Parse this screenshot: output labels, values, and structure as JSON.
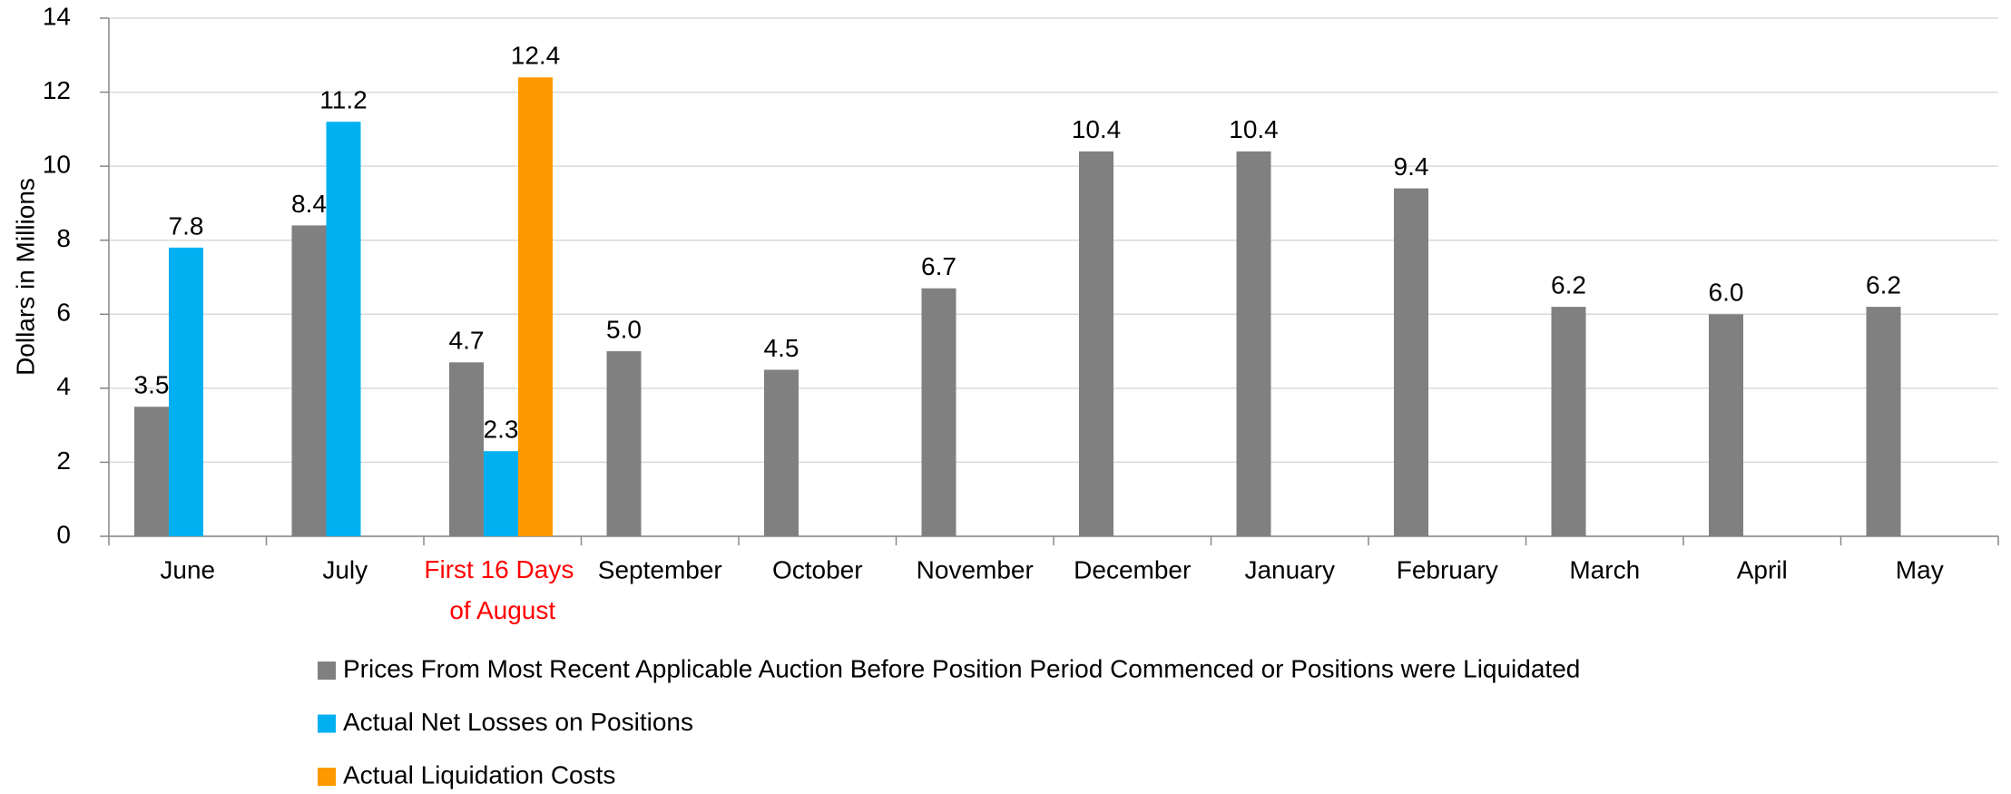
{
  "chart_data": {
    "type": "bar",
    "y_label": "Dollars in Millions",
    "categories": [
      "June",
      "July",
      "First 16 Days of August",
      "September",
      "October",
      "November",
      "December",
      "January",
      "February",
      "March",
      "April",
      "May"
    ],
    "category_label_colors": [
      "#000000",
      "#000000",
      "#ff0000",
      "#000000",
      "#000000",
      "#000000",
      "#000000",
      "#000000",
      "#000000",
      "#000000",
      "#000000",
      "#000000"
    ],
    "series": [
      {
        "name": "Prices From Most Recent Applicable Auction Before Position Period Commenced or Positions were Liquidated",
        "color": "#808080",
        "label_color": "#ff0000",
        "values": [
          3.5,
          8.4,
          4.7,
          5.0,
          4.5,
          6.7,
          10.4,
          10.4,
          9.4,
          6.2,
          6.0,
          6.2
        ],
        "value_labels": [
          "3.5",
          "8.4",
          "4.7",
          "5.0",
          "4.5",
          "6.7",
          "10.4",
          "10.4",
          "9.4",
          "6.2",
          "6.0",
          "6.2"
        ]
      },
      {
        "name": "Actual Net Losses on Positions",
        "color": "#00b0f0",
        "label_color": "#000000",
        "values": [
          7.8,
          11.2,
          2.3,
          null,
          null,
          null,
          null,
          null,
          null,
          null,
          null,
          null
        ],
        "value_labels": [
          "7.8",
          "11.2",
          "2.3",
          null,
          null,
          null,
          null,
          null,
          null,
          null,
          null,
          null
        ]
      },
      {
        "name": "Actual Liquidation Costs",
        "color": "#ff9900",
        "label_color": "#000000",
        "values": [
          null,
          null,
          12.4,
          null,
          null,
          null,
          null,
          null,
          null,
          null,
          null,
          null
        ],
        "value_labels": [
          null,
          null,
          "12.4",
          null,
          null,
          null,
          null,
          null,
          null,
          null,
          null,
          null
        ]
      }
    ],
    "ylim": [
      0,
      14
    ],
    "yticks": [
      0,
      2,
      4,
      6,
      8,
      10,
      12,
      14
    ],
    "grid": true
  }
}
